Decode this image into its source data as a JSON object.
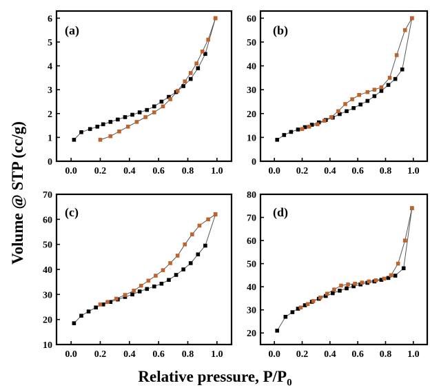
{
  "figure": {
    "ylabel": "Volume @ STP (cc/g)",
    "xlabel_main": "Relative pressure, P/P",
    "xlabel_sub": "0"
  },
  "colors": {
    "adsorption": "#000000",
    "desorption": "#c0622a",
    "line": "#555555"
  },
  "chart_data": [
    {
      "type": "line",
      "panel_label": "(a)",
      "xlim": [
        -0.1,
        1.1
      ],
      "ylim": [
        0,
        6.3
      ],
      "xticks": [
        0.0,
        0.2,
        0.4,
        0.6,
        0.8,
        1.0
      ],
      "yticks": [
        0,
        1,
        2,
        3,
        4,
        5,
        6
      ],
      "series": [
        {
          "marker": "black-square",
          "x": [
            0.02,
            0.07,
            0.13,
            0.18,
            0.22,
            0.27,
            0.32,
            0.37,
            0.42,
            0.47,
            0.52,
            0.57,
            0.62,
            0.67,
            0.72,
            0.77,
            0.82,
            0.87,
            0.92,
            0.99
          ],
          "y": [
            0.9,
            1.22,
            1.35,
            1.45,
            1.55,
            1.65,
            1.75,
            1.85,
            1.95,
            2.05,
            2.15,
            2.3,
            2.5,
            2.7,
            2.9,
            3.15,
            3.45,
            3.9,
            4.5,
            6.0
          ]
        },
        {
          "marker": "orange-square",
          "x": [
            0.2,
            0.27,
            0.33,
            0.39,
            0.45,
            0.51,
            0.57,
            0.63,
            0.68,
            0.73,
            0.78,
            0.82,
            0.86,
            0.9,
            0.94,
            0.99
          ],
          "y": [
            0.9,
            1.05,
            1.25,
            1.45,
            1.65,
            1.85,
            2.05,
            2.3,
            2.6,
            2.95,
            3.35,
            3.7,
            4.1,
            4.6,
            5.1,
            6.0
          ]
        }
      ]
    },
    {
      "type": "line",
      "panel_label": "(b)",
      "xlim": [
        -0.1,
        1.1
      ],
      "ylim": [
        0,
        63
      ],
      "xticks": [
        0.0,
        0.2,
        0.4,
        0.6,
        0.8,
        1.0
      ],
      "yticks": [
        0,
        10,
        20,
        30,
        40,
        50,
        60
      ],
      "series": [
        {
          "marker": "black-square",
          "x": [
            0.02,
            0.07,
            0.12,
            0.17,
            0.22,
            0.27,
            0.32,
            0.37,
            0.42,
            0.47,
            0.52,
            0.57,
            0.62,
            0.67,
            0.72,
            0.77,
            0.82,
            0.87,
            0.92,
            0.99
          ],
          "y": [
            9,
            11,
            12.3,
            13.3,
            14.3,
            15.3,
            16.3,
            17.3,
            18.3,
            19.8,
            21,
            22.3,
            23.8,
            25.3,
            27.3,
            29.5,
            32,
            34.5,
            38.5,
            60
          ]
        },
        {
          "marker": "orange-square",
          "x": [
            0.2,
            0.25,
            0.31,
            0.36,
            0.41,
            0.46,
            0.51,
            0.56,
            0.61,
            0.67,
            0.72,
            0.77,
            0.83,
            0.88,
            0.94,
            0.99
          ],
          "y": [
            13.5,
            14.5,
            15.5,
            17,
            18.5,
            21,
            24,
            26,
            27.8,
            29,
            30,
            31,
            35,
            44.5,
            55,
            60
          ]
        }
      ]
    },
    {
      "type": "line",
      "panel_label": "(c)",
      "xlim": [
        -0.1,
        1.1
      ],
      "ylim": [
        10,
        70
      ],
      "xticks": [
        0.0,
        0.2,
        0.4,
        0.6,
        0.8,
        1.0
      ],
      "yticks": [
        10,
        20,
        30,
        40,
        50,
        60,
        70
      ],
      "series": [
        {
          "marker": "black-square",
          "x": [
            0.02,
            0.07,
            0.12,
            0.17,
            0.22,
            0.27,
            0.32,
            0.37,
            0.42,
            0.47,
            0.52,
            0.57,
            0.62,
            0.67,
            0.72,
            0.77,
            0.82,
            0.87,
            0.92,
            0.99
          ],
          "y": [
            18.5,
            21.5,
            23.2,
            24.8,
            26,
            27,
            28,
            29,
            30,
            31.2,
            32.2,
            33.2,
            34.3,
            35.8,
            37.8,
            40,
            42.5,
            46,
            49.5,
            62
          ]
        },
        {
          "marker": "orange-square",
          "x": [
            0.2,
            0.25,
            0.31,
            0.37,
            0.43,
            0.48,
            0.53,
            0.58,
            0.63,
            0.68,
            0.73,
            0.78,
            0.83,
            0.88,
            0.94,
            0.99
          ],
          "y": [
            26,
            27,
            28.3,
            29.8,
            31.5,
            33.5,
            35.5,
            37.5,
            39.7,
            42.5,
            45.5,
            50,
            54,
            57.5,
            60,
            62
          ]
        }
      ]
    },
    {
      "type": "line",
      "panel_label": "(d)",
      "xlim": [
        -0.1,
        1.1
      ],
      "ylim": [
        15,
        80
      ],
      "xticks": [
        0.0,
        0.2,
        0.4,
        0.6,
        0.8,
        1.0
      ],
      "yticks": [
        20,
        30,
        40,
        50,
        60,
        70,
        80
      ],
      "series": [
        {
          "marker": "black-square",
          "x": [
            0.02,
            0.08,
            0.13,
            0.17,
            0.22,
            0.27,
            0.32,
            0.37,
            0.42,
            0.47,
            0.52,
            0.57,
            0.62,
            0.67,
            0.72,
            0.77,
            0.82,
            0.87,
            0.93,
            0.99
          ],
          "y": [
            21,
            27,
            29,
            30.5,
            32,
            33.5,
            34.8,
            36,
            37.2,
            38.3,
            39.3,
            40.2,
            41,
            41.7,
            42.3,
            43,
            43.8,
            44.8,
            48,
            74
          ]
        },
        {
          "marker": "orange-square",
          "x": [
            0.19,
            0.24,
            0.28,
            0.33,
            0.38,
            0.43,
            0.48,
            0.53,
            0.58,
            0.63,
            0.68,
            0.73,
            0.79,
            0.84,
            0.89,
            0.94,
            0.99
          ],
          "y": [
            31,
            32.5,
            33.8,
            35.3,
            37,
            38.8,
            40.5,
            41,
            41.3,
            41.8,
            42.3,
            42.8,
            43.5,
            45,
            50,
            60,
            74
          ]
        }
      ]
    }
  ]
}
